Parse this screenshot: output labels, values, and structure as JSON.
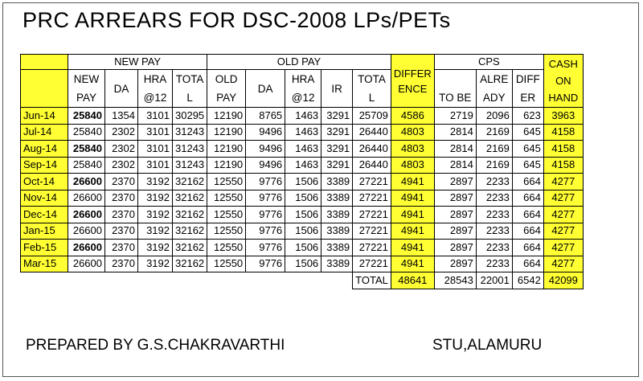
{
  "title": "PRC ARREARS FOR DSC-2008  LPs/PETs",
  "groups": {
    "new_pay": "NEW PAY",
    "old_pay": "OLD PAY",
    "difference": "DIFFER ENCE",
    "cps": "CPS",
    "cash_on_hand": "CASH ON HAND"
  },
  "subheaders": {
    "new_pay": "NEW PAY",
    "new_da": "DA",
    "new_hra": "HRA @12",
    "new_total": "TOTA L",
    "old_pay": "OLD PAY",
    "old_da": "DA",
    "old_hra": "HRA @12",
    "ir": "IR",
    "old_total": "TOTA L",
    "cps_to_be": "TO BE",
    "cps_already": "ALRE ADY",
    "cps_differ": "DIFF ER"
  },
  "rows": [
    {
      "month": "Jun-14",
      "new_pay": "25840",
      "new_da": "1354",
      "new_hra": "3101",
      "new_total": "30295",
      "old_pay": "12190",
      "old_da": "8765",
      "old_hra": "1463",
      "ir": "3291",
      "old_total": "25709",
      "difference": "4586",
      "cps_to_be": "2719",
      "cps_already": "2096",
      "cps_differ": "623",
      "cash": "3963"
    },
    {
      "month": "Jul-14",
      "new_pay": "25840",
      "new_da": "2302",
      "new_hra": "3101",
      "new_total": "31243",
      "old_pay": "12190",
      "old_da": "9496",
      "old_hra": "1463",
      "ir": "3291",
      "old_total": "26440",
      "difference": "4803",
      "cps_to_be": "2814",
      "cps_already": "2169",
      "cps_differ": "645",
      "cash": "4158"
    },
    {
      "month": "Aug-14",
      "new_pay": "25840",
      "new_da": "2302",
      "new_hra": "3101",
      "new_total": "31243",
      "old_pay": "12190",
      "old_da": "9496",
      "old_hra": "1463",
      "ir": "3291",
      "old_total": "26440",
      "difference": "4803",
      "cps_to_be": "2814",
      "cps_already": "2169",
      "cps_differ": "645",
      "cash": "4158"
    },
    {
      "month": "Sep-14",
      "new_pay": "25840",
      "new_da": "2302",
      "new_hra": "3101",
      "new_total": "31243",
      "old_pay": "12190",
      "old_da": "9496",
      "old_hra": "1463",
      "ir": "3291",
      "old_total": "26440",
      "difference": "4803",
      "cps_to_be": "2814",
      "cps_already": "2169",
      "cps_differ": "645",
      "cash": "4158"
    },
    {
      "month": "Oct-14",
      "new_pay": "26600",
      "new_da": "2370",
      "new_hra": "3192",
      "new_total": "32162",
      "old_pay": "12550",
      "old_da": "9776",
      "old_hra": "1506",
      "ir": "3389",
      "old_total": "27221",
      "difference": "4941",
      "cps_to_be": "2897",
      "cps_already": "2233",
      "cps_differ": "664",
      "cash": "4277"
    },
    {
      "month": "Nov-14",
      "new_pay": "26600",
      "new_da": "2370",
      "new_hra": "3192",
      "new_total": "32162",
      "old_pay": "12550",
      "old_da": "9776",
      "old_hra": "1506",
      "ir": "3389",
      "old_total": "27221",
      "difference": "4941",
      "cps_to_be": "2897",
      "cps_already": "2233",
      "cps_differ": "664",
      "cash": "4277"
    },
    {
      "month": "Dec-14",
      "new_pay": "26600",
      "new_da": "2370",
      "new_hra": "3192",
      "new_total": "32162",
      "old_pay": "12550",
      "old_da": "9776",
      "old_hra": "1506",
      "ir": "3389",
      "old_total": "27221",
      "difference": "4941",
      "cps_to_be": "2897",
      "cps_already": "2233",
      "cps_differ": "664",
      "cash": "4277"
    },
    {
      "month": "Jan-15",
      "new_pay": "26600",
      "new_da": "2370",
      "new_hra": "3192",
      "new_total": "32162",
      "old_pay": "12550",
      "old_da": "9776",
      "old_hra": "1506",
      "ir": "3389",
      "old_total": "27221",
      "difference": "4941",
      "cps_to_be": "2897",
      "cps_already": "2233",
      "cps_differ": "664",
      "cash": "4277"
    },
    {
      "month": "Feb-15",
      "new_pay": "26600",
      "new_da": "2370",
      "new_hra": "3192",
      "new_total": "32162",
      "old_pay": "12550",
      "old_da": "9776",
      "old_hra": "1506",
      "ir": "3389",
      "old_total": "27221",
      "difference": "4941",
      "cps_to_be": "2897",
      "cps_already": "2233",
      "cps_differ": "664",
      "cash": "4277"
    },
    {
      "month": "Mar-15",
      "new_pay": "26600",
      "new_da": "2370",
      "new_hra": "3192",
      "new_total": "32162",
      "old_pay": "12550",
      "old_da": "9776",
      "old_hra": "1506",
      "ir": "3389",
      "old_total": "27221",
      "difference": "4941",
      "cps_to_be": "2897",
      "cps_already": "2233",
      "cps_differ": "664",
      "cash": "4277"
    }
  ],
  "total_label": "TOTAL",
  "totals": {
    "difference": "48641",
    "cps_to_be": "28543",
    "cps_already": "22001",
    "cps_differ": "6542",
    "cash": "42099"
  },
  "footer": {
    "prepared_by": "PREPARED BY G.S.CHAKRAVARTHI",
    "school": "STU,ALAMURU"
  },
  "colors": {
    "highlight": "#ffff33"
  }
}
